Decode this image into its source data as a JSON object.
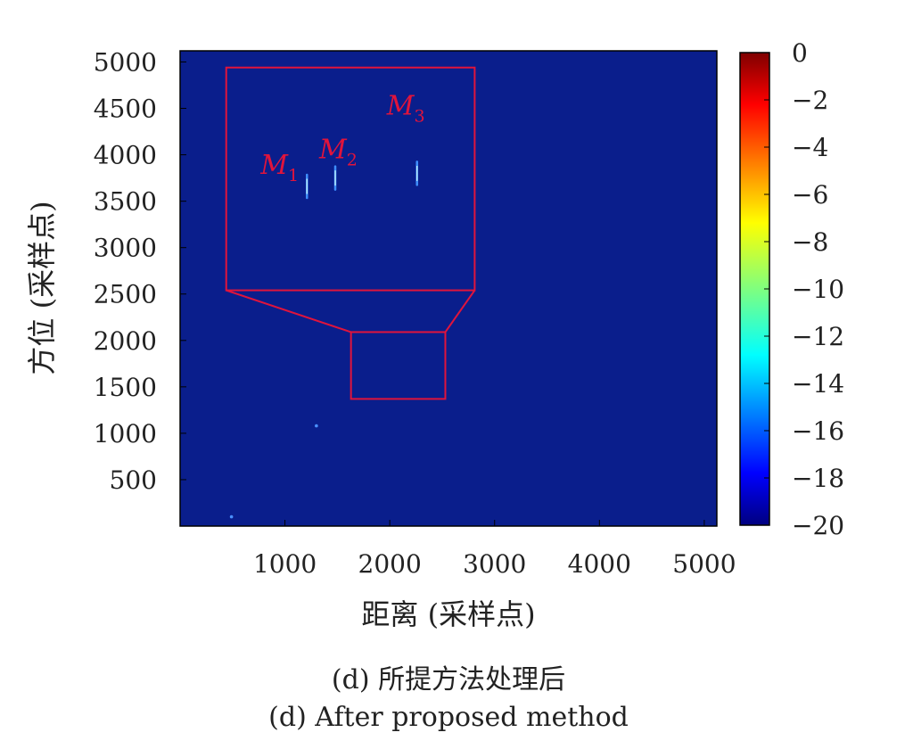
{
  "chart_data": {
    "type": "heatmap",
    "xlabel": "距离 (采样点)",
    "ylabel": "方位 (采样点)",
    "xlim": [
      0,
      5120
    ],
    "ylim": [
      0,
      5120
    ],
    "x_ticks": [
      "1000",
      "2000",
      "3000",
      "4000",
      "5000"
    ],
    "y_ticks": [
      "500",
      "1000",
      "1500",
      "2000",
      "2500",
      "3000",
      "3500",
      "4000",
      "4500",
      "5000"
    ],
    "colorbar": {
      "range": [
        -20,
        0
      ],
      "ticks": [
        "0",
        "−2",
        "−4",
        "−6",
        "−8",
        "−10",
        "−12",
        "−14",
        "−16",
        "−18",
        "−20"
      ],
      "colormap": "jet"
    },
    "background_color": "#0a1e8c",
    "targets": [
      {
        "label": "M",
        "subscript": "1",
        "x": 1210,
        "y": 3660
      },
      {
        "label": "M",
        "subscript": "2",
        "x": 1480,
        "y": 3750
      },
      {
        "label": "M",
        "subscript": "3",
        "x": 2260,
        "y": 3800
      }
    ],
    "outside_points": [
      {
        "x": 1300,
        "y": 1080
      },
      {
        "x": 490,
        "y": 100
      }
    ],
    "zoom_source_region": {
      "x": [
        1630,
        2530
      ],
      "y": [
        1370,
        2090
      ]
    },
    "zoom_inset_region": {
      "x": [
        440,
        2810
      ],
      "y": [
        2540,
        4940
      ]
    },
    "annotation_color": "#e0143c"
  },
  "caption": {
    "line1": "(d) 所提方法处理后",
    "line2": "(d) After proposed method"
  }
}
